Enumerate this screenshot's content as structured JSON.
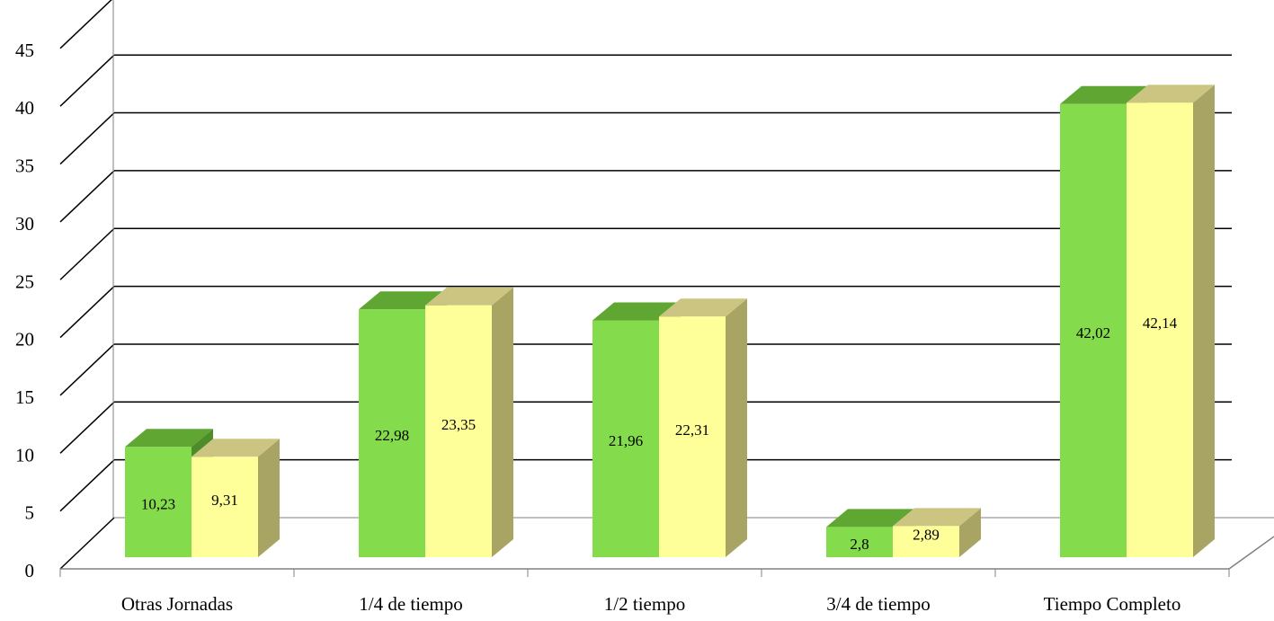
{
  "chart_data": {
    "type": "bar",
    "categories": [
      "Otras Jornadas",
      "1/4 de tiempo",
      "1/2 tiempo",
      "3/4 de tiempo",
      "Tiempo Completo"
    ],
    "series": [
      {
        "values": [
          10.23,
          22.98,
          21.96,
          2.8,
          42.02
        ],
        "value_labels": [
          "10,23",
          "22,98",
          "21,96",
          "2,8",
          "42,02"
        ]
      },
      {
        "values": [
          9.31,
          23.35,
          22.31,
          2.89,
          42.14
        ],
        "value_labels": [
          "9,31",
          "23,35",
          "22,31",
          "2,89",
          "42,14"
        ]
      }
    ],
    "ylim": [
      0,
      45
    ],
    "yticks": [
      "0",
      "5",
      "10",
      "15",
      "20",
      "25",
      "30",
      "35",
      "40",
      "45"
    ],
    "grid": true,
    "style": "3d-clustered-column",
    "colors": {
      "series1_front": "#84DB4B",
      "series1_top": "#5FA632",
      "series1_side": "#4E8C2A",
      "series2_front": "#FFFF99",
      "series2_top": "#CCC581",
      "series2_side": "#A8A463",
      "grid": "#000000"
    }
  }
}
